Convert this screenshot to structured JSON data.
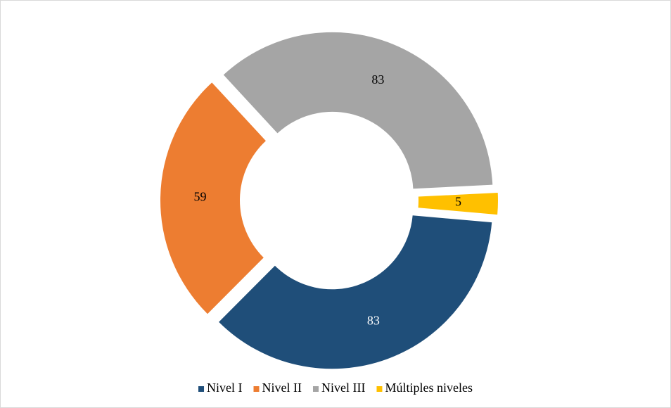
{
  "chart_data": {
    "type": "donut",
    "categories": [
      "Nivel I",
      "Nivel II",
      "Nivel III",
      "Múltiples niveles"
    ],
    "values": [
      83,
      59,
      83,
      5
    ],
    "colors": [
      "#1f4e79",
      "#ed7d31",
      "#a5a5a5",
      "#ffc000"
    ],
    "label_colors": [
      "#ffffff",
      "#000000",
      "#000000",
      "#000000"
    ],
    "legend": "bottom"
  }
}
